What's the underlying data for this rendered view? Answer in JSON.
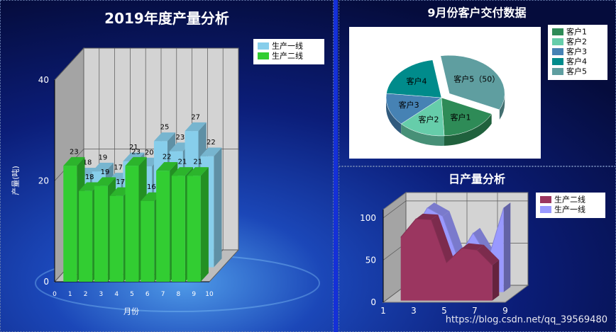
{
  "watermark": "https://blog.csdn.net/qq_39569480",
  "chart_data": [
    {
      "type": "bar3d",
      "title": "2019年度产量分析",
      "x_label": "月份",
      "y_label": "产量(吨)",
      "x": [
        1,
        2,
        3,
        4,
        5,
        6,
        7,
        8,
        9
      ],
      "xlim": [
        0,
        10
      ],
      "xticks": [
        0,
        1,
        2,
        3,
        4,
        5,
        6,
        7,
        8,
        9,
        10
      ],
      "ylim": [
        0,
        40
      ],
      "yticks": [
        0,
        20,
        40
      ],
      "grid": true,
      "legend": "top-right",
      "series": [
        {
          "name": "生产一线",
          "color": "#87ceeb",
          "values": [
            18,
            19,
            17,
            21,
            20,
            25,
            23,
            27,
            22
          ]
        },
        {
          "name": "生产二线",
          "color": "#32cd32",
          "values": [
            23,
            18,
            19,
            17,
            23,
            16,
            22,
            21,
            21
          ]
        }
      ]
    },
    {
      "type": "pie3d",
      "title": "9月份客户交付数据",
      "categories": [
        "客户1",
        "客户2",
        "客户3",
        "客户4",
        "客户5"
      ],
      "values": [
        25,
        20,
        20,
        30,
        50
      ],
      "value_labels": [
        null,
        null,
        null,
        null,
        "客户5（50）"
      ],
      "colors": [
        "#2e8b57",
        "#66cdaa",
        "#4682b4",
        "#008b8b",
        "#5f9ea0"
      ],
      "explode": [
        false,
        false,
        false,
        false,
        true
      ],
      "legend": "right"
    },
    {
      "type": "area3d",
      "title": "日产量分析",
      "x": [
        2,
        3,
        4,
        5,
        6,
        7,
        8
      ],
      "xlim": [
        1,
        9
      ],
      "xticks": [
        1,
        3,
        5,
        7,
        9
      ],
      "ylim": [
        0,
        110
      ],
      "yticks": [
        0,
        50,
        100
      ],
      "grid": true,
      "legend": "top-right",
      "series": [
        {
          "name": "生产二线",
          "color": "#9b3660",
          "values": [
            75,
            97,
            96,
            45,
            62,
            60,
            42
          ]
        },
        {
          "name": "生产一线",
          "color": "#9999ff",
          "values": [
            70,
            100,
            90,
            40,
            70,
            40,
            100
          ]
        }
      ]
    }
  ]
}
